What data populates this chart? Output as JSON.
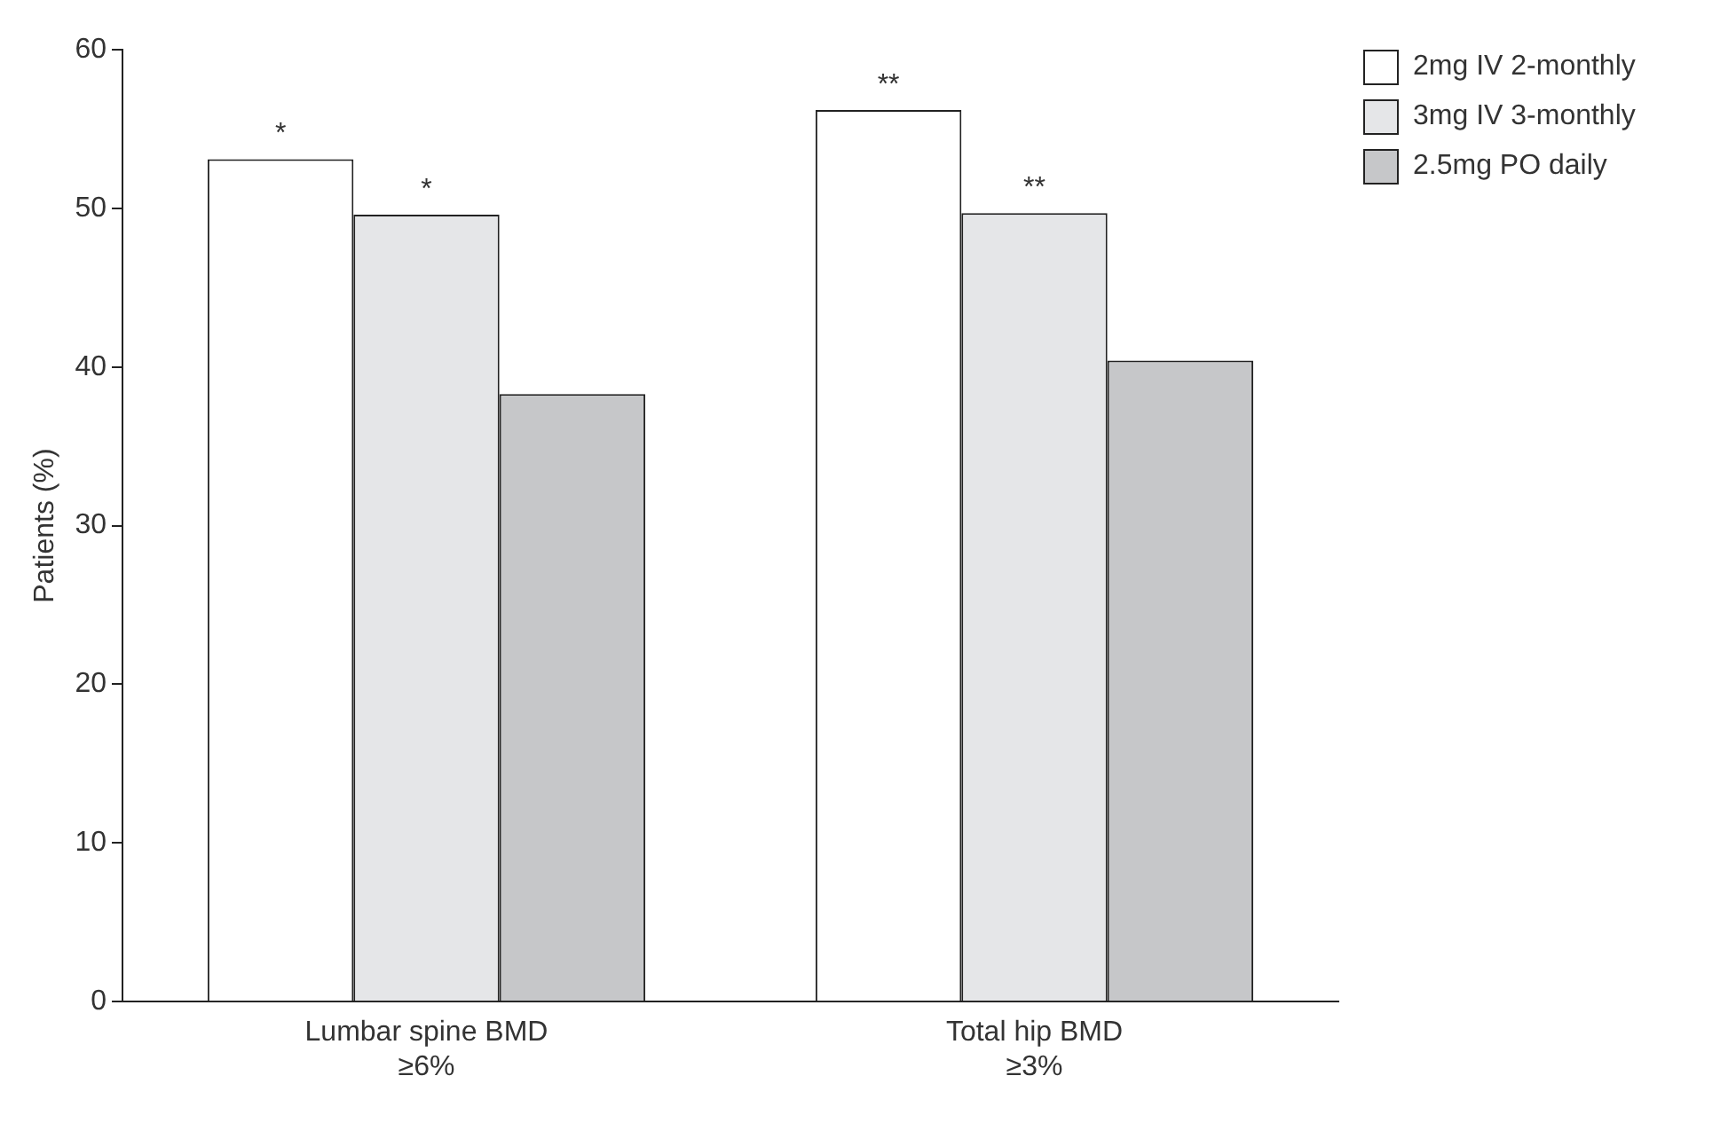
{
  "chart_data": {
    "type": "bar",
    "ylabel": "Patients (%)",
    "categories": [
      "Lumbar spine BMD ≥6%",
      "Total hip BMD ≥3%"
    ],
    "series": [
      {
        "name": "2mg IV 2-monthly",
        "color": "#ffffff",
        "values": [
          53.1,
          56.2
        ],
        "value_labels": [
          "*",
          "**"
        ]
      },
      {
        "name": "3mg IV 3-monthly",
        "color": "#e5e6e8",
        "values": [
          49.6,
          49.7
        ],
        "value_labels": [
          "*",
          "**"
        ]
      },
      {
        "name": "2.5mg PO daily",
        "color": "#c6c7c9",
        "values": [
          38.3,
          40.4
        ]
      }
    ],
    "ylim": [
      0,
      60
    ],
    "yticks": [
      0,
      10,
      20,
      30,
      40,
      50,
      60
    ],
    "grid": false,
    "legend": "top right"
  }
}
